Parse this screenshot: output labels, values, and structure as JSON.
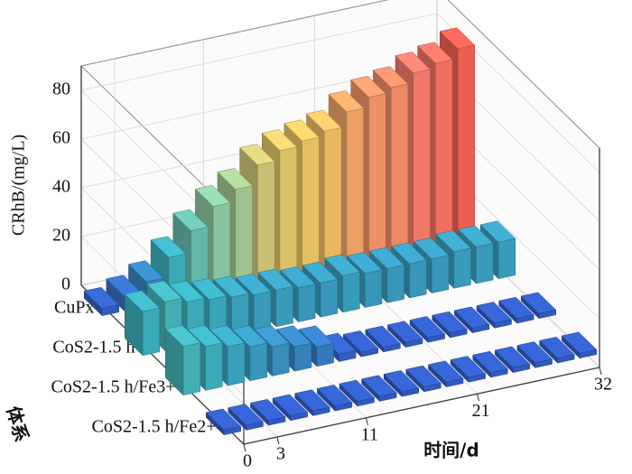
{
  "chart_data": {
    "type": "bar3d",
    "y_label": "CRhB/(mg/L)",
    "x_label": "时间/d",
    "z_label": "体系",
    "x": [
      0,
      2,
      4,
      6,
      8,
      10,
      12,
      14,
      16,
      18,
      20,
      22,
      24,
      26,
      28,
      30,
      32
    ],
    "series": [
      {
        "name": "CoS2-1.5 h/Fe2+",
        "values": [
          2,
          2,
          2,
          2,
          2,
          2,
          2,
          2,
          2,
          2,
          2,
          2,
          2,
          2,
          2,
          2,
          2
        ]
      },
      {
        "name": "CoS2-1.5 h/Fe3+",
        "values": [
          20,
          18,
          16,
          14,
          12,
          10,
          8,
          3,
          2,
          2,
          2,
          2,
          2,
          2,
          2,
          2,
          2
        ]
      },
      {
        "name": "CoS2-1.5 h",
        "values": [
          18,
          20,
          18,
          17,
          16,
          15,
          15,
          14,
          14,
          15,
          14,
          14,
          14,
          14,
          15,
          15,
          15
        ]
      },
      {
        "name": "CuPx",
        "values": [
          3,
          6,
          10,
          18,
          27,
          35,
          40,
          48,
          52,
          54,
          56,
          62,
          66,
          68,
          72,
          74,
          78
        ]
      }
    ],
    "colormap": [
      "#3050c0",
      "#3aaab8",
      "#8cc49a",
      "#e6c060",
      "#f07868",
      "#e52a24"
    ],
    "xlim": [
      0,
      32
    ],
    "xticks": [
      0,
      3,
      11,
      21,
      32
    ],
    "ylim": [
      0,
      90
    ],
    "yticks": [
      0,
      20,
      40,
      60,
      80
    ],
    "grid": true
  }
}
